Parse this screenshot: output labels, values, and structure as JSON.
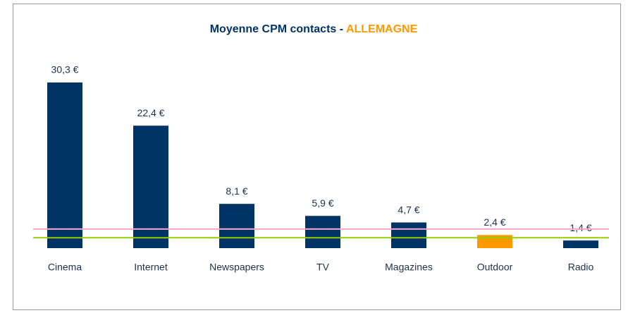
{
  "chart_data": {
    "type": "bar",
    "title": "Moyenne CPM contacts -",
    "title_highlight": "ALLEMAGNE",
    "title_color": "#003366",
    "title_highlight_color": "#ff9900",
    "categories": [
      "Cinema",
      "Internet",
      "Newspapers",
      "TV",
      "Magazines",
      "Outdoor",
      "Radio"
    ],
    "values": [
      30.3,
      22.4,
      8.1,
      5.9,
      4.7,
      2.4,
      1.4
    ],
    "value_labels": [
      "30,3 €",
      "22,4 €",
      "8,1 €",
      "5,9 €",
      "4,7 €",
      "2,4 €",
      "1,4 €"
    ],
    "colors": [
      "#003366",
      "#003366",
      "#003366",
      "#003366",
      "#003366",
      "#ff9900",
      "#003366"
    ],
    "reference_lines": [
      {
        "value": 3.5,
        "color": "#f4a6c8"
      },
      {
        "value": 1.9,
        "color": "#99cc00"
      }
    ]
  }
}
